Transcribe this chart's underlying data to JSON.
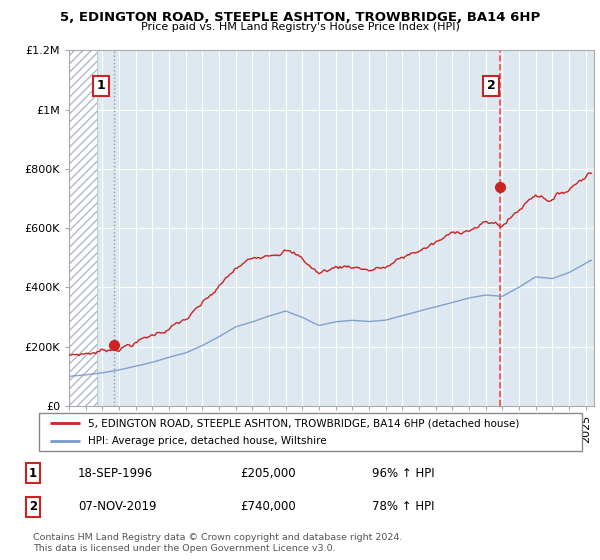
{
  "title": "5, EDINGTON ROAD, STEEPLE ASHTON, TROWBRIDGE, BA14 6HP",
  "subtitle": "Price paid vs. HM Land Registry's House Price Index (HPI)",
  "legend_line1": "5, EDINGTON ROAD, STEEPLE ASHTON, TROWBRIDGE, BA14 6HP (detached house)",
  "legend_line2": "HPI: Average price, detached house, Wiltshire",
  "transaction1_date": "18-SEP-1996",
  "transaction1_price": 205000,
  "transaction1_hpi": "96% ↑ HPI",
  "transaction2_date": "07-NOV-2019",
  "transaction2_price": 740000,
  "transaction2_hpi": "78% ↑ HPI",
  "footer": "Contains HM Land Registry data © Crown copyright and database right 2024.\nThis data is licensed under the Open Government Licence v3.0.",
  "red_color": "#cc2222",
  "blue_color": "#7799cc",
  "plot_bg_color": "#dde8f0",
  "hatch_color": "#b0b8c8",
  "dashed_line1_color": "#888888",
  "dashed_line2_color": "#ff4444",
  "ylim": [
    0,
    1200000
  ],
  "xlim_start": 1994.0,
  "xlim_end": 2025.5,
  "t1_x": 1996.72,
  "t2_x": 2019.83,
  "t1_price": 205000,
  "t2_price": 740000
}
